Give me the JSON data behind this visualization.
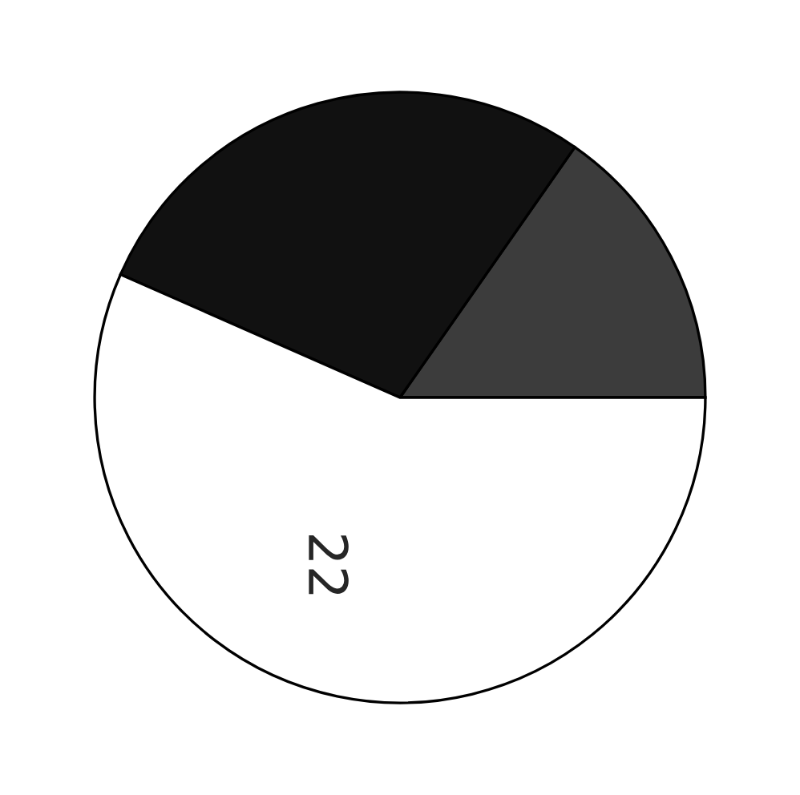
{
  "chart_data": {
    "type": "pie",
    "categories": [
      null,
      null,
      null
    ],
    "values": [
      15.3,
      28.1,
      56.6
    ],
    "colors": [
      "#3c3c3c",
      "#111111",
      "#ffffff"
    ],
    "annotations": [
      "22"
    ]
  }
}
